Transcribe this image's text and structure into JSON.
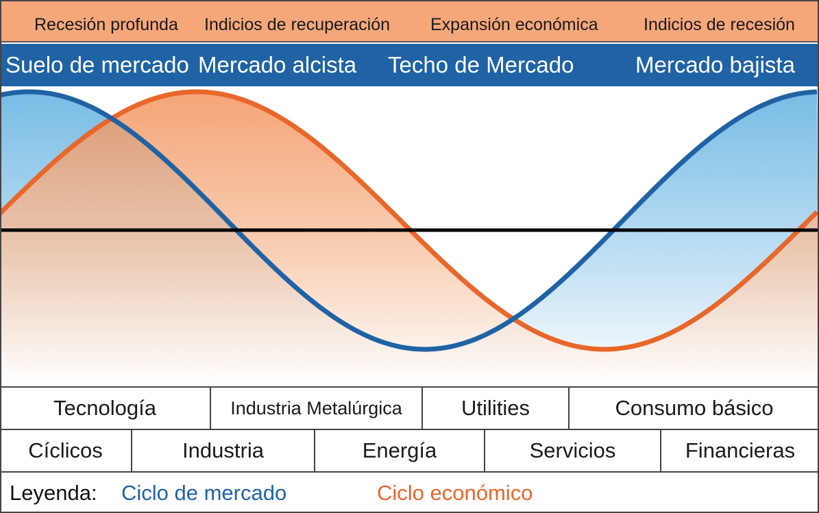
{
  "phases": [
    "Recesión profunda",
    "Indicios de recuperación",
    "Expansión económica",
    "Indicios de recesión"
  ],
  "market_phases": [
    "Suelo de mercado",
    "Mercado alcista",
    "Techo de Mercado",
    "Mercado bajista"
  ],
  "sectors_row1": [
    "Tecnología",
    "Industria Metalúrgica",
    "Utilities",
    "Consumo básico"
  ],
  "sectors_row2": [
    "Cíclicos",
    "Industria",
    "Energía",
    "Servicios",
    "Financieras"
  ],
  "legend": {
    "title": "Leyenda:",
    "market": "Ciclo de mercado",
    "economic": "Ciclo económico"
  },
  "colors": {
    "market": "#1f63a4",
    "economic": "#e8672a",
    "phase_band": "#f6a77a",
    "market_band": "#1f63a4"
  }
}
